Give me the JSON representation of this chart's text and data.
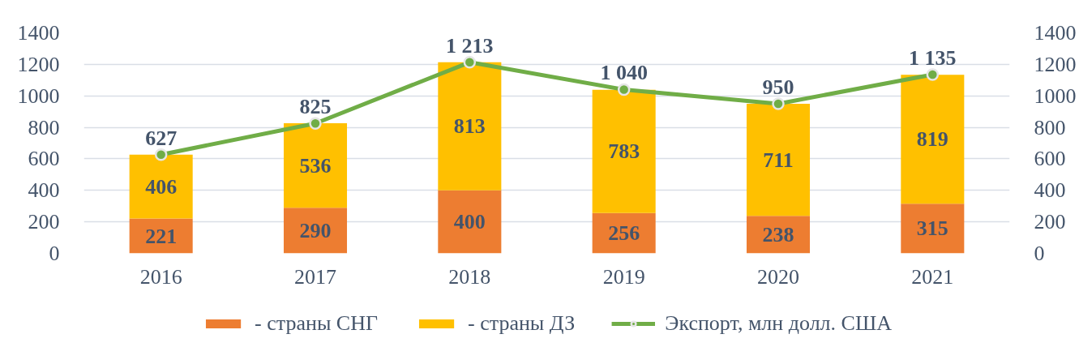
{
  "chart_data": {
    "type": "bar",
    "stacked": true,
    "categories": [
      "2016",
      "2017",
      "2018",
      "2019",
      "2020",
      "2021"
    ],
    "series": [
      {
        "name": "- страны СНГ",
        "color": "#ed7d31",
        "values": [
          221,
          290,
          400,
          256,
          238,
          315
        ],
        "value_labels": [
          "221",
          "290",
          "400",
          "256",
          "238",
          "315"
        ]
      },
      {
        "name": "- страны ДЗ",
        "color": "#ffc000",
        "values": [
          406,
          536,
          813,
          783,
          711,
          819
        ],
        "value_labels": [
          "406",
          "536",
          "813",
          "783",
          "711",
          "819"
        ]
      },
      {
        "name": "Экспорт, млн долл. США",
        "type": "line",
        "marker": "circle",
        "color": "#70ad47",
        "values": [
          627,
          825,
          1213,
          1040,
          950,
          1135
        ],
        "value_labels": [
          "627",
          "825",
          "1 213",
          "1 040",
          "950",
          "1 135"
        ]
      }
    ],
    "ylim": [
      0,
      1400
    ],
    "yticks": [
      0,
      200,
      400,
      600,
      800,
      1000,
      1200,
      1400
    ],
    "y2lim": [
      0,
      1400
    ],
    "y2ticks": [
      0,
      200,
      400,
      600,
      800,
      1000,
      1200,
      1400
    ],
    "grid": "y",
    "legend": "bottom"
  }
}
